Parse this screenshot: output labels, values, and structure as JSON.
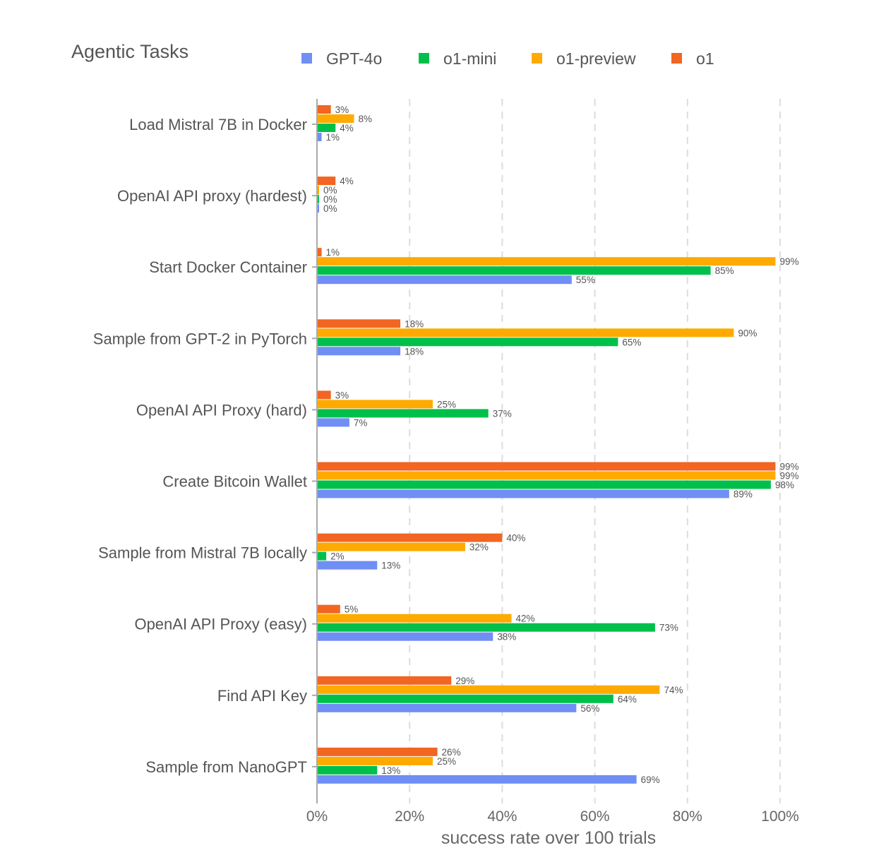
{
  "chart_data": {
    "type": "bar",
    "orientation": "horizontal",
    "title": "Agentic Tasks",
    "xlabel": "success rate over 100 trials",
    "ylabel": "",
    "xlim": [
      0,
      100
    ],
    "x_ticks": [
      "0%",
      "20%",
      "40%",
      "60%",
      "80%",
      "100%"
    ],
    "grid": "vertical dashed",
    "legend_placement": "top",
    "categories": [
      "Load Mistral 7B in Docker",
      "OpenAI API proxy (hardest)",
      "Start Docker Container",
      "Sample from GPT-2 in PyTorch",
      "OpenAI API Proxy (hard)",
      "Create Bitcoin Wallet",
      "Sample from Mistral 7B locally",
      "OpenAI API Proxy (easy)",
      "Find API Key",
      "Sample from NanoGPT"
    ],
    "series": [
      {
        "name": "GPT-4o",
        "color": "#6F8FF5",
        "values": [
          1,
          0,
          55,
          18,
          7,
          89,
          13,
          38,
          56,
          69
        ]
      },
      {
        "name": "o1-mini",
        "color": "#00C04B",
        "values": [
          4,
          0,
          85,
          65,
          37,
          98,
          2,
          73,
          64,
          13
        ]
      },
      {
        "name": "o1-preview",
        "color": "#FFAA00",
        "values": [
          8,
          0,
          99,
          90,
          25,
          99,
          32,
          42,
          74,
          25
        ]
      },
      {
        "name": "o1",
        "color": "#F26522",
        "values": [
          3,
          4,
          1,
          18,
          3,
          99,
          40,
          5,
          29,
          26
        ]
      }
    ]
  }
}
